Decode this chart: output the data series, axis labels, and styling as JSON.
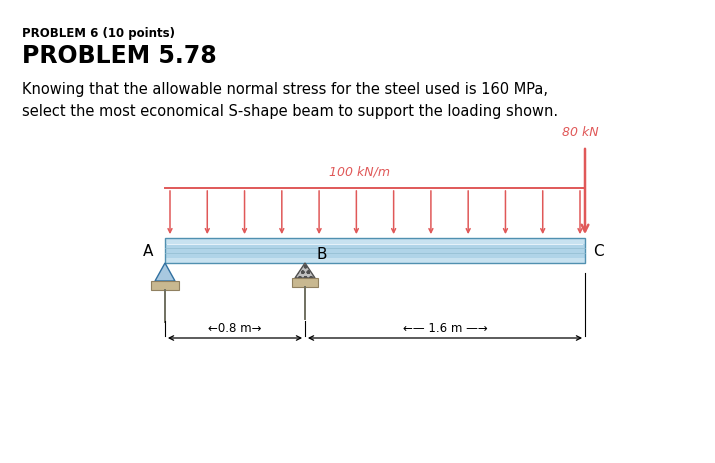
{
  "title1": "PROBLEM 6 (10 points)",
  "title2": "PROBLEM 5.78",
  "body_line1": "Knowing that the allowable normal stress for the steel used is 160 MPa,",
  "body_line2": "select the most economical S-shape beam to support the loading shown.",
  "label_100kNm": "100 kN/m",
  "label_80kN": "80 kN",
  "label_A": "A",
  "label_B": "B",
  "label_C": "C",
  "label_08m": "0.8 m",
  "label_16m": "1.6 m",
  "beam_fill_top": "#d8edf6",
  "beam_fill_mid": "#b0d4e8",
  "beam_fill_bot": "#c8e2f0",
  "beam_edge": "#5090b0",
  "beam_shine": "#eaf5fc",
  "load_color": "#e05858",
  "support_A_fill": "#a8c8e0",
  "support_B_fill": "#c0c0c0",
  "support_base_fill": "#c8b890",
  "support_base_edge": "#908060",
  "bg_color": "#ffffff"
}
